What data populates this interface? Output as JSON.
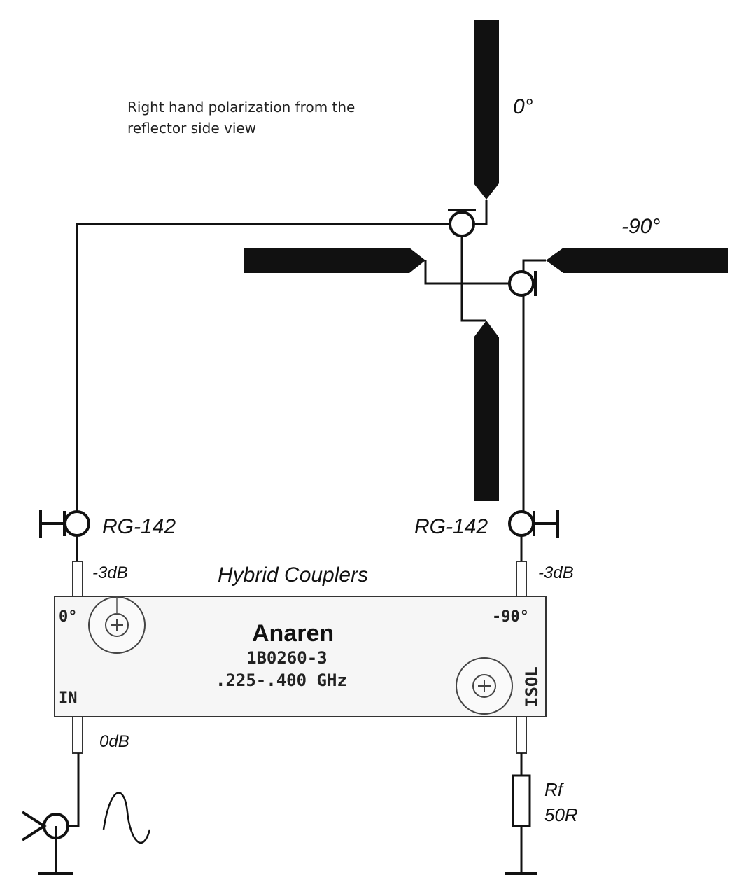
{
  "note": {
    "line1": "Right hand polarization from the",
    "line2": "reflector side view"
  },
  "phase_labels": {
    "top": "0°",
    "right": "-90°"
  },
  "coax": {
    "left": "RG-142",
    "right": "RG-142"
  },
  "coupler": {
    "title": "Hybrid Couplers",
    "brand": "Anaren",
    "model": "1B0260-3",
    "freq": ".225-.400 GHz",
    "port_0": "0°",
    "port_90": "-90°",
    "port_in": "IN",
    "port_isol": "ISOL",
    "level_left": "-3dB",
    "level_right": "-3dB",
    "level_input": "0dB"
  },
  "resistor": {
    "name": "Rf",
    "value": "50R"
  },
  "icons": [
    "sine-wave-icon",
    "coax-connector-icon",
    "ground-icon",
    "resistor-icon",
    "plus-circle-icon"
  ],
  "colors": {
    "ink": "#111111",
    "panel_bg": "#f6f6f6",
    "paper": "#ffffff"
  }
}
